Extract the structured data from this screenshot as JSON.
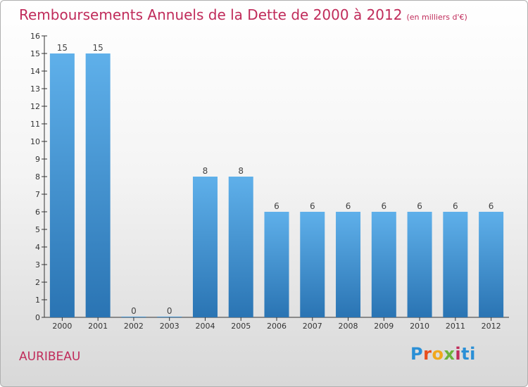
{
  "header": {
    "title": "Remboursements Annuels de la Dette de 2000 à 2012",
    "unit": "(en milliers d'€)"
  },
  "footer": {
    "place": "AURIBEAU",
    "logo": "Proxiti"
  },
  "colors": {
    "title": "#c02b5a",
    "bar_top": "#5fb0ea",
    "bar_bottom": "#2a74b3"
  },
  "chart_data": {
    "type": "bar",
    "title": "Remboursements Annuels de la Dette de 2000 à 2012",
    "subtitle": "(en milliers d'€)",
    "xlabel": "",
    "ylabel": "",
    "categories": [
      "2000",
      "2001",
      "2002",
      "2003",
      "2004",
      "2005",
      "2006",
      "2007",
      "2008",
      "2009",
      "2010",
      "2011",
      "2012"
    ],
    "values": [
      15,
      15,
      0,
      0,
      8,
      8,
      6,
      6,
      6,
      6,
      6,
      6,
      6
    ],
    "data_labels": [
      "15",
      "15",
      "0",
      "0",
      "8",
      "8",
      "6",
      "6",
      "6",
      "6",
      "6",
      "6",
      "6"
    ],
    "yticks": [
      "0",
      "1",
      "2",
      "3",
      "4",
      "5",
      "6",
      "7",
      "8",
      "9",
      "10",
      "11",
      "12",
      "13",
      "14",
      "15",
      "16"
    ],
    "ylim": [
      0,
      16
    ],
    "grid": false,
    "legend": "none"
  }
}
